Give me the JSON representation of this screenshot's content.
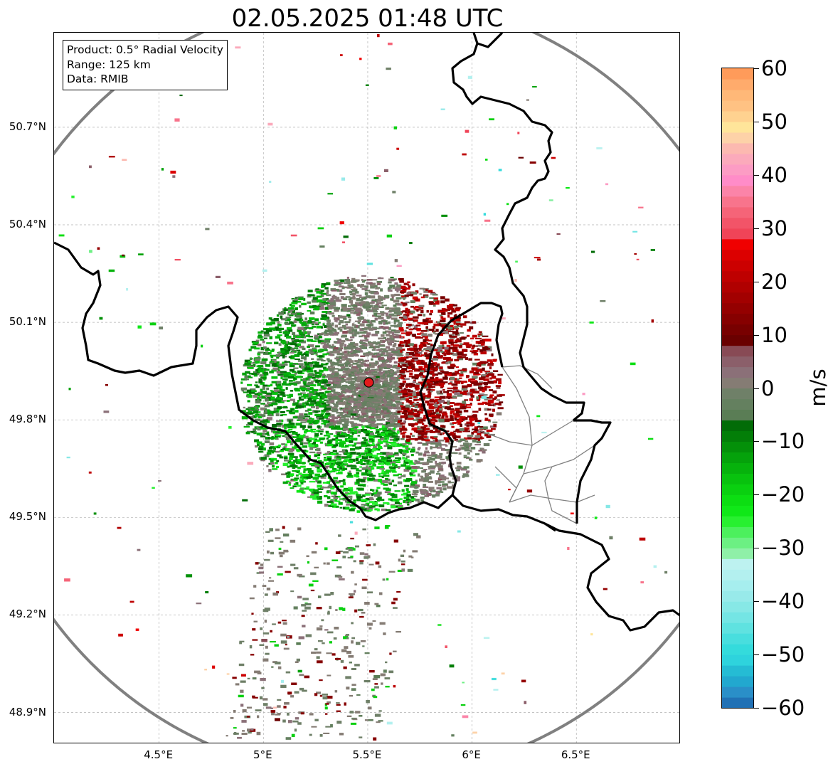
{
  "title": "02.05.2025 01:48 UTC",
  "info_box": {
    "product": "Product: 0.5° Radial Velocity",
    "range": "Range: 125 km",
    "data": "Data: RMIB"
  },
  "map": {
    "lon_range": [
      4.0,
      7.0
    ],
    "lat_range": [
      48.8,
      50.99
    ],
    "lat_ticks": [
      {
        "value": 48.9,
        "label": "48.9°N"
      },
      {
        "value": 49.2,
        "label": "49.2°N"
      },
      {
        "value": 49.5,
        "label": "49.5°N"
      },
      {
        "value": 49.8,
        "label": "49.8°N"
      },
      {
        "value": 50.1,
        "label": "50.1°N"
      },
      {
        "value": 50.4,
        "label": "50.4°N"
      },
      {
        "value": 50.7,
        "label": "50.7°N"
      }
    ],
    "lon_ticks": [
      {
        "value": 4.5,
        "label": "4.5°E"
      },
      {
        "value": 5.0,
        "label": "5°E"
      },
      {
        "value": 5.5,
        "label": "5.5°E"
      },
      {
        "value": 6.0,
        "label": "6°E"
      },
      {
        "value": 6.5,
        "label": "6.5°E"
      }
    ],
    "gridlines": true,
    "radar_site": {
      "lon": 5.505,
      "lat": 49.915,
      "marker_color": "#e31a1c"
    },
    "range_ring_color": "#808080",
    "border_color": "#000000",
    "province_border_color": "#808080"
  },
  "colorbar": {
    "unit": "m/s",
    "min": -60,
    "max": 60,
    "tick_values": [
      -60,
      -50,
      -40,
      -30,
      -20,
      -10,
      0,
      10,
      20,
      30,
      40,
      50,
      60
    ],
    "tick_labels": [
      "−60",
      "−50",
      "−40",
      "−30",
      "−20",
      "−10",
      "0",
      "10",
      "20",
      "30",
      "40",
      "50",
      "60"
    ],
    "bands": [
      {
        "from": -60,
        "to": -58,
        "color": "#2171b5"
      },
      {
        "from": -58,
        "to": -56,
        "color": "#2a8fc8"
      },
      {
        "from": -56,
        "to": -54,
        "color": "#22a8cf"
      },
      {
        "from": -54,
        "to": -52,
        "color": "#25bcd4"
      },
      {
        "from": -52,
        "to": -50,
        "color": "#2ed3dd"
      },
      {
        "from": -50,
        "to": -48,
        "color": "#34dbdc"
      },
      {
        "from": -48,
        "to": -46,
        "color": "#48dede"
      },
      {
        "from": -46,
        "to": -44,
        "color": "#5fe2e0"
      },
      {
        "from": -44,
        "to": -42,
        "color": "#74e5e4"
      },
      {
        "from": -42,
        "to": -40,
        "color": "#87e8e6"
      },
      {
        "from": -40,
        "to": -38,
        "color": "#98eaea"
      },
      {
        "from": -38,
        "to": -36,
        "color": "#a6eeee"
      },
      {
        "from": -36,
        "to": -34,
        "color": "#b3f0ef"
      },
      {
        "from": -34,
        "to": -32,
        "color": "#bdf2f0"
      },
      {
        "from": -32,
        "to": -30,
        "color": "#8ff0a8"
      },
      {
        "from": -30,
        "to": -28,
        "color": "#6cf083"
      },
      {
        "from": -28,
        "to": -26,
        "color": "#4cf05d"
      },
      {
        "from": -26,
        "to": -24,
        "color": "#28f030"
      },
      {
        "from": -24,
        "to": -22,
        "color": "#10e818"
      },
      {
        "from": -22,
        "to": -20,
        "color": "#0cde12"
      },
      {
        "from": -20,
        "to": -18,
        "color": "#0ad010"
      },
      {
        "from": -18,
        "to": -16,
        "color": "#08c20e"
      },
      {
        "from": -16,
        "to": -14,
        "color": "#06b20c"
      },
      {
        "from": -14,
        "to": -12,
        "color": "#05a20b"
      },
      {
        "from": -12,
        "to": -10,
        "color": "#049009"
      },
      {
        "from": -10,
        "to": -8,
        "color": "#037e08"
      },
      {
        "from": -8,
        "to": -6,
        "color": "#026c07"
      },
      {
        "from": -6,
        "to": -4,
        "color": "#5a7d55"
      },
      {
        "from": -4,
        "to": -2,
        "color": "#64805f"
      },
      {
        "from": -2,
        "to": 0,
        "color": "#6f8068"
      },
      {
        "from": 0,
        "to": 2,
        "color": "#857c74"
      },
      {
        "from": 2,
        "to": 4,
        "color": "#8b7078"
      },
      {
        "from": 4,
        "to": 6,
        "color": "#8b5f6a"
      },
      {
        "from": 6,
        "to": 8,
        "color": "#884a55"
      },
      {
        "from": 8,
        "to": 10,
        "color": "#6a0000"
      },
      {
        "from": 10,
        "to": 12,
        "color": "#780000"
      },
      {
        "from": 12,
        "to": 14,
        "color": "#860000"
      },
      {
        "from": 14,
        "to": 16,
        "color": "#940000"
      },
      {
        "from": 16,
        "to": 18,
        "color": "#a20000"
      },
      {
        "from": 18,
        "to": 20,
        "color": "#b00000"
      },
      {
        "from": 20,
        "to": 22,
        "color": "#be0000"
      },
      {
        "from": 22,
        "to": 24,
        "color": "#cc0000"
      },
      {
        "from": 24,
        "to": 26,
        "color": "#dc0000"
      },
      {
        "from": 26,
        "to": 28,
        "color": "#f00000"
      },
      {
        "from": 28,
        "to": 30,
        "color": "#f04458"
      },
      {
        "from": 30,
        "to": 32,
        "color": "#f25468"
      },
      {
        "from": 32,
        "to": 34,
        "color": "#f56478"
      },
      {
        "from": 34,
        "to": 36,
        "color": "#f8748c"
      },
      {
        "from": 36,
        "to": 38,
        "color": "#fb84a8"
      },
      {
        "from": 38,
        "to": 40,
        "color": "#ff8cc8"
      },
      {
        "from": 40,
        "to": 42,
        "color": "#fc9cc4"
      },
      {
        "from": 42,
        "to": 44,
        "color": "#fbaabb"
      },
      {
        "from": 44,
        "to": 46,
        "color": "#fcb9b0"
      },
      {
        "from": 46,
        "to": 48,
        "color": "#fdd2a8"
      },
      {
        "from": 48,
        "to": 50,
        "color": "#ffe59a"
      },
      {
        "from": 50,
        "to": 52,
        "color": "#ffd290"
      },
      {
        "from": 52,
        "to": 54,
        "color": "#ffc283"
      },
      {
        "from": 54,
        "to": 56,
        "color": "#ffb878"
      },
      {
        "from": 56,
        "to": 58,
        "color": "#ffab6c"
      },
      {
        "from": 58,
        "to": 60,
        "color": "#ff9b5a"
      }
    ]
  }
}
